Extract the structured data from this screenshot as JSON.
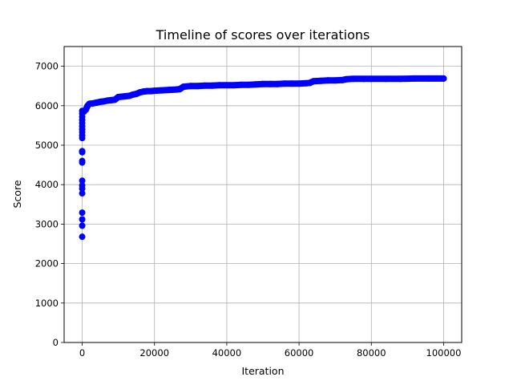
{
  "chart_data": {
    "type": "scatter",
    "title": "Timeline of scores over iterations",
    "xlabel": "Iteration",
    "ylabel": "Score",
    "xlim": [
      -5000,
      105000
    ],
    "ylim": [
      0,
      7500
    ],
    "xticks": [
      0,
      20000,
      40000,
      60000,
      80000,
      100000
    ],
    "yticks": [
      0,
      1000,
      2000,
      3000,
      4000,
      5000,
      6000,
      7000
    ],
    "grid": true,
    "marker_color": "#0000ff",
    "series": [
      {
        "points": [
          [
            0,
            2680
          ],
          [
            0,
            2960
          ],
          [
            0,
            3120
          ],
          [
            0,
            3290
          ],
          [
            0,
            3780
          ],
          [
            0,
            3900
          ],
          [
            0,
            3980
          ],
          [
            0,
            4100
          ],
          [
            0,
            4560
          ],
          [
            0,
            4600
          ],
          [
            0,
            4820
          ],
          [
            0,
            4850
          ],
          [
            0,
            5180
          ],
          [
            0,
            5250
          ],
          [
            0,
            5330
          ],
          [
            0,
            5400
          ],
          [
            0,
            5480
          ],
          [
            0,
            5560
          ],
          [
            0,
            5640
          ],
          [
            0,
            5720
          ],
          [
            0,
            5800
          ],
          [
            0,
            5870
          ],
          [
            500,
            5850
          ],
          [
            1000,
            5900
          ],
          [
            1500,
            6000
          ],
          [
            2000,
            6050
          ],
          [
            3000,
            6060
          ],
          [
            4000,
            6080
          ],
          [
            5000,
            6100
          ],
          [
            6000,
            6110
          ],
          [
            7000,
            6130
          ],
          [
            8000,
            6140
          ],
          [
            9000,
            6150
          ],
          [
            10000,
            6220
          ],
          [
            11000,
            6230
          ],
          [
            12000,
            6240
          ],
          [
            13000,
            6250
          ],
          [
            14000,
            6280
          ],
          [
            15000,
            6300
          ],
          [
            16000,
            6340
          ],
          [
            17000,
            6360
          ],
          [
            18000,
            6370
          ],
          [
            19000,
            6370
          ],
          [
            20000,
            6380
          ],
          [
            22000,
            6390
          ],
          [
            24000,
            6400
          ],
          [
            26000,
            6410
          ],
          [
            27000,
            6420
          ],
          [
            28000,
            6480
          ],
          [
            30000,
            6500
          ],
          [
            32000,
            6500
          ],
          [
            34000,
            6510
          ],
          [
            36000,
            6510
          ],
          [
            38000,
            6520
          ],
          [
            40000,
            6520
          ],
          [
            42000,
            6520
          ],
          [
            44000,
            6530
          ],
          [
            46000,
            6530
          ],
          [
            48000,
            6540
          ],
          [
            50000,
            6550
          ],
          [
            52000,
            6550
          ],
          [
            54000,
            6550
          ],
          [
            56000,
            6560
          ],
          [
            58000,
            6560
          ],
          [
            60000,
            6560
          ],
          [
            62000,
            6570
          ],
          [
            63000,
            6580
          ],
          [
            64000,
            6620
          ],
          [
            66000,
            6630
          ],
          [
            68000,
            6640
          ],
          [
            70000,
            6640
          ],
          [
            72000,
            6650
          ],
          [
            73000,
            6670
          ],
          [
            75000,
            6680
          ],
          [
            78000,
            6680
          ],
          [
            80000,
            6680
          ],
          [
            84000,
            6680
          ],
          [
            88000,
            6680
          ],
          [
            92000,
            6690
          ],
          [
            96000,
            6690
          ],
          [
            100000,
            6690
          ]
        ]
      }
    ]
  }
}
